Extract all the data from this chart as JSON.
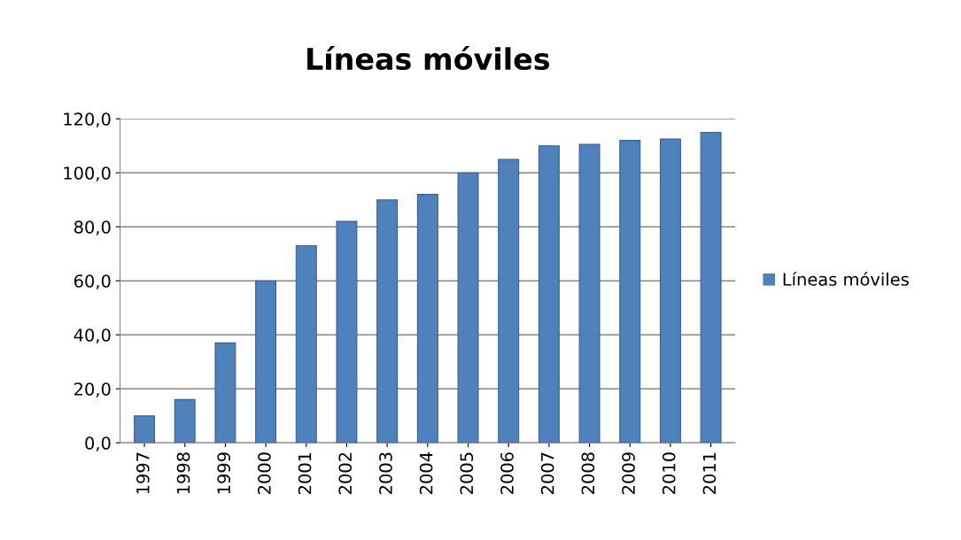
{
  "chart_data": {
    "type": "bar",
    "title": "Líneas móviles",
    "categories": [
      "1997",
      "1998",
      "1999",
      "2000",
      "2001",
      "2002",
      "2003",
      "2004",
      "2005",
      "2006",
      "2007",
      "2008",
      "2009",
      "2010",
      "2011"
    ],
    "series": [
      {
        "name": "Líneas móviles",
        "color": "#4f81bd",
        "values": [
          10,
          16,
          37,
          60,
          73,
          82,
          90,
          92,
          100,
          105,
          110,
          110.5,
          112,
          112.5,
          115
        ]
      }
    ],
    "ylim": [
      0,
      120
    ],
    "yticks": [
      {
        "value": 0,
        "label": "0,0"
      },
      {
        "value": 20,
        "label": "20,0"
      },
      {
        "value": 40,
        "label": "40,0"
      },
      {
        "value": 60,
        "label": "60,0"
      },
      {
        "value": 80,
        "label": "80,0"
      },
      {
        "value": 100,
        "label": "100,0"
      },
      {
        "value": 120,
        "label": "120,0"
      }
    ],
    "grid": "y",
    "legend": "right"
  }
}
